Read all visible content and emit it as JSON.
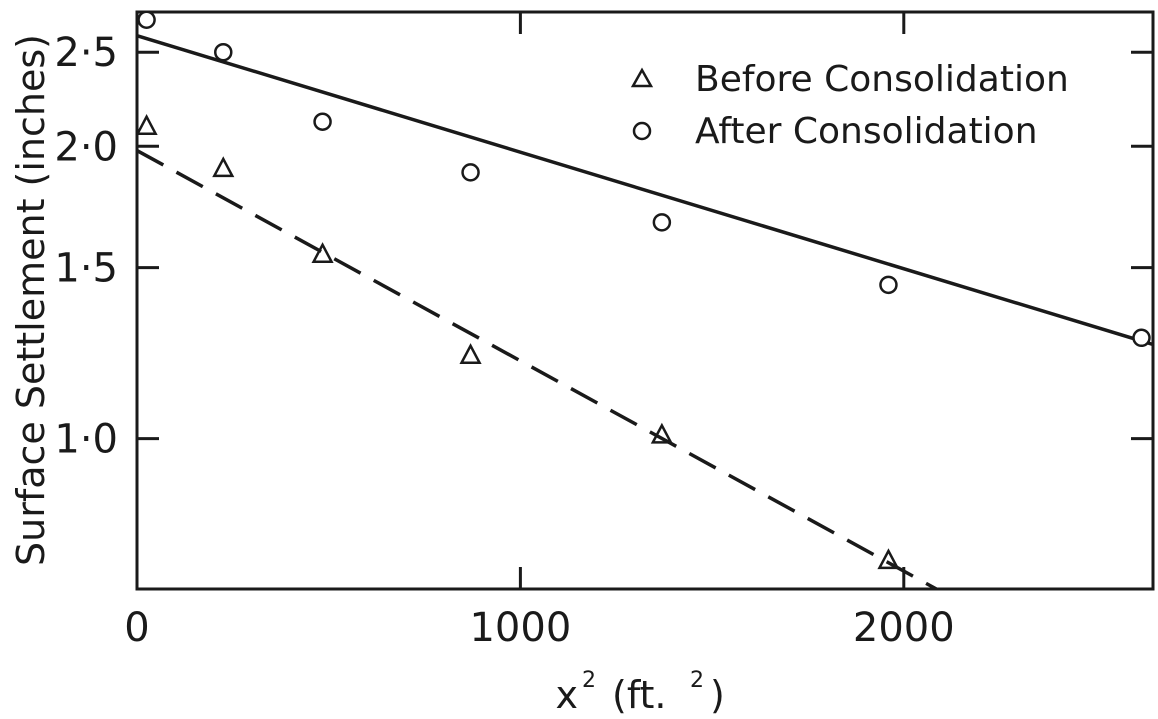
{
  "chart_data": {
    "type": "scatter",
    "title": "",
    "xlabel": "x",
    "xlabel_sup": "2",
    "xlabel_unit_open": "(ft.",
    "xlabel_unit_sup": "2",
    "xlabel_unit_close": ")",
    "ylabel": "Surface Settlement (inches)",
    "xlim": [
      0,
      2650
    ],
    "ylim": [
      0.7,
      2.75
    ],
    "y_scale": "log",
    "grid": false,
    "legend_position": "top-right",
    "x_ticks": [
      0,
      1000,
      2000
    ],
    "x_tick_labels": [
      "0",
      "1000",
      "2000"
    ],
    "y_ticks": [
      1.0,
      1.5,
      2.0,
      2.5
    ],
    "y_tick_labels": [
      "1·0",
      "1·5",
      "2·0",
      "2·5"
    ],
    "series": [
      {
        "name": "Before Consolidation",
        "marker": "triangle",
        "x": [
          25,
          225,
          484,
          870,
          1369,
          1960
        ],
        "y": [
          2.1,
          1.9,
          1.55,
          1.22,
          1.01,
          0.75
        ]
      },
      {
        "name": "After Consolidation",
        "marker": "circle",
        "x": [
          25,
          225,
          484,
          870,
          1369,
          1960,
          2620
        ],
        "y": [
          2.7,
          2.5,
          2.12,
          1.88,
          1.67,
          1.44,
          1.27
        ]
      }
    ],
    "fit_lines": [
      {
        "series": "After Consolidation",
        "style": "solid",
        "x": [
          0,
          2650
        ],
        "y": [
          2.6,
          1.25
        ]
      },
      {
        "series": "Before Consolidation",
        "style": "dashed",
        "x": [
          0,
          2085
        ],
        "y": [
          1.98,
          0.7
        ]
      }
    ]
  }
}
